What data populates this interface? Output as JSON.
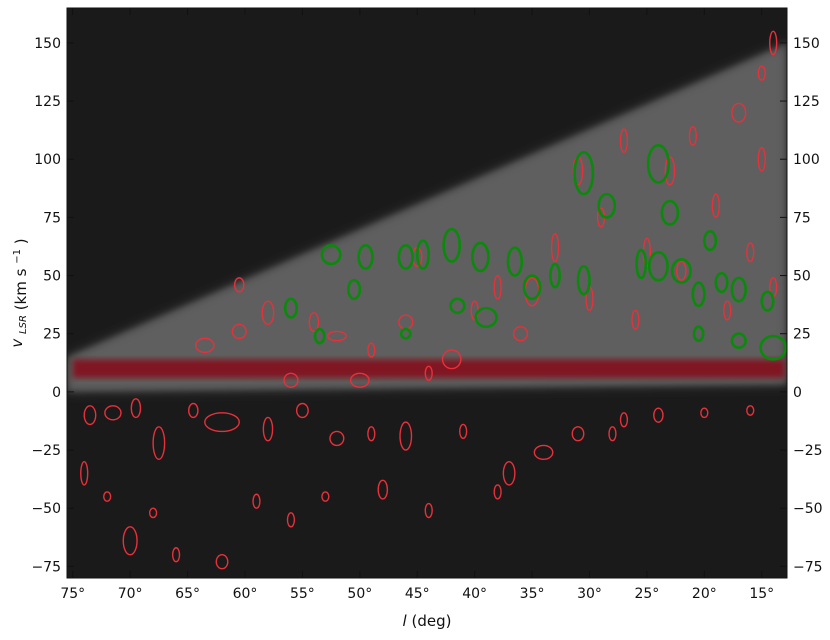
{
  "chart_data": {
    "type": "heatmap",
    "xlabel_var": "l",
    "xlabel_unit": "(deg)",
    "ylabel_var": "v",
    "ylabel_sub": "LSR",
    "ylabel_unit": "(km s",
    "ylabel_exp": "−1",
    "ylabel_close": ")",
    "xlim": [
      75.5,
      12.8
    ],
    "ylim": [
      -80,
      165
    ],
    "x_ticks": [
      75,
      70,
      65,
      60,
      55,
      50,
      45,
      40,
      35,
      30,
      25,
      20,
      15
    ],
    "x_tick_labels": [
      "75°",
      "70°",
      "65°",
      "60°",
      "55°",
      "50°",
      "45°",
      "40°",
      "35°",
      "30°",
      "25°",
      "20°",
      "15°"
    ],
    "y_ticks": [
      -75,
      -50,
      -25,
      0,
      25,
      50,
      75,
      100,
      125,
      150
    ],
    "y_tick_labels": [
      "−75",
      "−50",
      "−25",
      "0",
      "25",
      "50",
      "75",
      "100",
      "125",
      "150"
    ],
    "colors": {
      "background": "#1a1a1a",
      "emission_low": "#ffffff",
      "emission_high": "#8b0010",
      "red_ellipses": "#e8303a",
      "green_ellipses": "#0a8a0a"
    },
    "emission_bands": [
      {
        "l_start": 75.5,
        "l_end": 12.8,
        "v_lower_start": 0,
        "v_lower_end": 3,
        "v_upper_start": 15,
        "v_upper_end": 150,
        "intensity": 0.35
      },
      {
        "l_start": 75,
        "l_end": 13,
        "v_center": 10,
        "v_width": 8,
        "intensity": 0.9
      }
    ],
    "red_clouds": [
      {
        "l": 73.5,
        "v": -10,
        "dl": 0.5,
        "dv": 4
      },
      {
        "l": 71.5,
        "v": -9,
        "dl": 0.7,
        "dv": 3
      },
      {
        "l": 69.5,
        "v": -7,
        "dl": 0.4,
        "dv": 4
      },
      {
        "l": 67.5,
        "v": -22,
        "dl": 0.5,
        "dv": 7
      },
      {
        "l": 64.5,
        "v": -8,
        "dl": 0.4,
        "dv": 3
      },
      {
        "l": 62,
        "v": -13,
        "dl": 1.5,
        "dv": 4
      },
      {
        "l": 58,
        "v": -16,
        "dl": 0.4,
        "dv": 5
      },
      {
        "l": 55,
        "v": -8,
        "dl": 0.5,
        "dv": 3
      },
      {
        "l": 52,
        "v": -20,
        "dl": 0.6,
        "dv": 3
      },
      {
        "l": 49,
        "v": -18,
        "dl": 0.3,
        "dv": 3
      },
      {
        "l": 46,
        "v": -19,
        "dl": 0.5,
        "dv": 6
      },
      {
        "l": 41,
        "v": -17,
        "dl": 0.3,
        "dv": 3
      },
      {
        "l": 37,
        "v": -35,
        "dl": 0.5,
        "dv": 5
      },
      {
        "l": 34,
        "v": -26,
        "dl": 0.8,
        "dv": 3
      },
      {
        "l": 28,
        "v": -18,
        "dl": 0.3,
        "dv": 3
      },
      {
        "l": 24,
        "v": -10,
        "dl": 0.4,
        "dv": 3
      },
      {
        "l": 20,
        "v": -9,
        "dl": 0.3,
        "dv": 2
      },
      {
        "l": 16,
        "v": -8,
        "dl": 0.3,
        "dv": 2
      },
      {
        "l": 74,
        "v": -35,
        "dl": 0.3,
        "dv": 5
      },
      {
        "l": 72,
        "v": -45,
        "dl": 0.3,
        "dv": 2
      },
      {
        "l": 70,
        "v": -64,
        "dl": 0.6,
        "dv": 6
      },
      {
        "l": 68,
        "v": -52,
        "dl": 0.3,
        "dv": 2
      },
      {
        "l": 66,
        "v": -70,
        "dl": 0.3,
        "dv": 3
      },
      {
        "l": 62,
        "v": -73,
        "dl": 0.5,
        "dv": 3
      },
      {
        "l": 59,
        "v": -47,
        "dl": 0.3,
        "dv": 3
      },
      {
        "l": 56,
        "v": -55,
        "dl": 0.3,
        "dv": 3
      },
      {
        "l": 53,
        "v": -45,
        "dl": 0.3,
        "dv": 2
      },
      {
        "l": 48,
        "v": -42,
        "dl": 0.4,
        "dv": 4
      },
      {
        "l": 44,
        "v": -51,
        "dl": 0.3,
        "dv": 3
      },
      {
        "l": 38,
        "v": -43,
        "dl": 0.3,
        "dv": 3
      },
      {
        "l": 63.5,
        "v": 20,
        "dl": 0.8,
        "dv": 3
      },
      {
        "l": 60.5,
        "v": 26,
        "dl": 0.6,
        "dv": 3
      },
      {
        "l": 58,
        "v": 34,
        "dl": 0.5,
        "dv": 5
      },
      {
        "l": 54,
        "v": 30,
        "dl": 0.4,
        "dv": 4
      },
      {
        "l": 52,
        "v": 24,
        "dl": 0.8,
        "dv": 2
      },
      {
        "l": 49,
        "v": 18,
        "dl": 0.3,
        "dv": 3
      },
      {
        "l": 46,
        "v": 30,
        "dl": 0.6,
        "dv": 3
      },
      {
        "l": 42,
        "v": 14,
        "dl": 0.8,
        "dv": 4
      },
      {
        "l": 38,
        "v": 45,
        "dl": 0.3,
        "dv": 5
      },
      {
        "l": 36,
        "v": 25,
        "dl": 0.6,
        "dv": 3
      },
      {
        "l": 33,
        "v": 62,
        "dl": 0.3,
        "dv": 6
      },
      {
        "l": 31,
        "v": 95,
        "dl": 0.4,
        "dv": 6
      },
      {
        "l": 29,
        "v": 75,
        "dl": 0.3,
        "dv": 4
      },
      {
        "l": 27,
        "v": 108,
        "dl": 0.3,
        "dv": 5
      },
      {
        "l": 25,
        "v": 60,
        "dl": 0.3,
        "dv": 6
      },
      {
        "l": 23,
        "v": 95,
        "dl": 0.4,
        "dv": 6
      },
      {
        "l": 21,
        "v": 110,
        "dl": 0.3,
        "dv": 4
      },
      {
        "l": 19,
        "v": 80,
        "dl": 0.3,
        "dv": 5
      },
      {
        "l": 17,
        "v": 120,
        "dl": 0.6,
        "dv": 4
      },
      {
        "l": 15,
        "v": 100,
        "dl": 0.3,
        "dv": 5
      },
      {
        "l": 14,
        "v": 150,
        "dl": 0.3,
        "dv": 5
      },
      {
        "l": 15,
        "v": 137,
        "dl": 0.3,
        "dv": 3
      },
      {
        "l": 45,
        "v": 58,
        "dl": 0.4,
        "dv": 4
      },
      {
        "l": 40,
        "v": 35,
        "dl": 0.3,
        "dv": 4
      },
      {
        "l": 35,
        "v": 43,
        "dl": 0.6,
        "dv": 6
      },
      {
        "l": 30,
        "v": 40,
        "dl": 0.3,
        "dv": 5
      },
      {
        "l": 26,
        "v": 31,
        "dl": 0.3,
        "dv": 4
      },
      {
        "l": 22,
        "v": 52,
        "dl": 0.4,
        "dv": 4
      },
      {
        "l": 18,
        "v": 35,
        "dl": 0.3,
        "dv": 4
      },
      {
        "l": 16,
        "v": 60,
        "dl": 0.3,
        "dv": 4
      },
      {
        "l": 14,
        "v": 45,
        "dl": 0.3,
        "dv": 4
      },
      {
        "l": 50,
        "v": 5,
        "dl": 0.8,
        "dv": 3
      },
      {
        "l": 56,
        "v": 5,
        "dl": 0.6,
        "dv": 3
      },
      {
        "l": 60.5,
        "v": 46,
        "dl": 0.4,
        "dv": 3
      },
      {
        "l": 44,
        "v": 8,
        "dl": 0.3,
        "dv": 3
      },
      {
        "l": 31,
        "v": -18,
        "dl": 0.5,
        "dv": 3
      },
      {
        "l": 27,
        "v": -12,
        "dl": 0.3,
        "dv": 3
      }
    ],
    "green_clouds": [
      {
        "l": 30.5,
        "v": 94,
        "dl": 0.8,
        "dv": 9
      },
      {
        "l": 24,
        "v": 98,
        "dl": 0.9,
        "dv": 8
      },
      {
        "l": 28.5,
        "v": 80,
        "dl": 0.7,
        "dv": 5
      },
      {
        "l": 23,
        "v": 77,
        "dl": 0.7,
        "dv": 5
      },
      {
        "l": 52.5,
        "v": 59,
        "dl": 0.8,
        "dv": 4
      },
      {
        "l": 49.5,
        "v": 58,
        "dl": 0.6,
        "dv": 5
      },
      {
        "l": 46,
        "v": 58,
        "dl": 0.6,
        "dv": 5
      },
      {
        "l": 44.5,
        "v": 59,
        "dl": 0.5,
        "dv": 6
      },
      {
        "l": 42,
        "v": 63,
        "dl": 0.7,
        "dv": 7
      },
      {
        "l": 39.5,
        "v": 58,
        "dl": 0.7,
        "dv": 6
      },
      {
        "l": 36.5,
        "v": 56,
        "dl": 0.6,
        "dv": 6
      },
      {
        "l": 35,
        "v": 45,
        "dl": 0.7,
        "dv": 5
      },
      {
        "l": 33,
        "v": 50,
        "dl": 0.4,
        "dv": 5
      },
      {
        "l": 30.5,
        "v": 48,
        "dl": 0.5,
        "dv": 6
      },
      {
        "l": 25.5,
        "v": 55,
        "dl": 0.4,
        "dv": 6
      },
      {
        "l": 24,
        "v": 54,
        "dl": 0.8,
        "dv": 6
      },
      {
        "l": 22,
        "v": 52,
        "dl": 0.8,
        "dv": 5
      },
      {
        "l": 19.5,
        "v": 65,
        "dl": 0.5,
        "dv": 4
      },
      {
        "l": 20.5,
        "v": 42,
        "dl": 0.5,
        "dv": 5
      },
      {
        "l": 18.5,
        "v": 47,
        "dl": 0.5,
        "dv": 4
      },
      {
        "l": 17,
        "v": 44,
        "dl": 0.6,
        "dv": 5
      },
      {
        "l": 14.5,
        "v": 39,
        "dl": 0.5,
        "dv": 4
      },
      {
        "l": 50.5,
        "v": 44,
        "dl": 0.5,
        "dv": 4
      },
      {
        "l": 56,
        "v": 36,
        "dl": 0.5,
        "dv": 4
      },
      {
        "l": 41.5,
        "v": 37,
        "dl": 0.6,
        "dv": 3
      },
      {
        "l": 39,
        "v": 32,
        "dl": 0.9,
        "dv": 4
      },
      {
        "l": 53.5,
        "v": 24,
        "dl": 0.4,
        "dv": 3
      },
      {
        "l": 46,
        "v": 25,
        "dl": 0.4,
        "dv": 2
      },
      {
        "l": 20.5,
        "v": 25,
        "dl": 0.4,
        "dv": 3
      },
      {
        "l": 17,
        "v": 22,
        "dl": 0.6,
        "dv": 3
      },
      {
        "l": 14,
        "v": 19,
        "dl": 1.1,
        "dv": 5
      }
    ]
  }
}
